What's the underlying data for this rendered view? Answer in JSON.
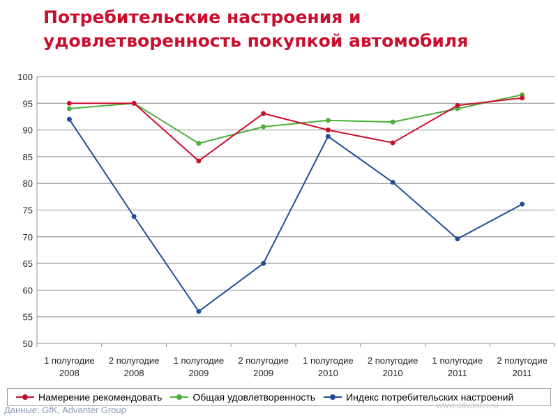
{
  "chart_data": {
    "type": "line",
    "title": "Потребительские настроения и удовлетворенность покупкой автомобиля",
    "title_lines": [
      "Потребительские настроения и",
      "удовлетворенность покупкой автомобиля"
    ],
    "categories": [
      [
        "1 полугодие",
        "2008"
      ],
      [
        "2 полугодие",
        "2008"
      ],
      [
        "1 полугодие",
        "2009"
      ],
      [
        "2 полугодие",
        "2009"
      ],
      [
        "1 полугодие",
        "2010"
      ],
      [
        "2 полугодие",
        "2010"
      ],
      [
        "1 полугодие",
        "2011"
      ],
      [
        "2 полугодие",
        "2011"
      ]
    ],
    "ylim": [
      50,
      100
    ],
    "yticks": [
      50,
      55,
      60,
      65,
      70,
      75,
      80,
      85,
      90,
      95,
      100
    ],
    "grid": true,
    "legend_position": "bottom",
    "series": [
      {
        "name": "Намерение рекомендовать",
        "color": "#c8102e",
        "values": [
          95,
          95,
          84.2,
          93.1,
          90,
          87.6,
          94.6,
          96
        ]
      },
      {
        "name": "Общая удовлетворенность",
        "color": "#4caf3a",
        "values": [
          94,
          95,
          87.5,
          90.6,
          91.8,
          91.5,
          94,
          96.6
        ]
      },
      {
        "name": "Индекс потребительских настроений",
        "color": "#1f4e96",
        "values": [
          92,
          73.8,
          56,
          65,
          88.8,
          80.2,
          69.6,
          76.1
        ]
      }
    ]
  },
  "watermark": "www.advanter.ru",
  "source": "Данные: GfK, Advanter Group"
}
